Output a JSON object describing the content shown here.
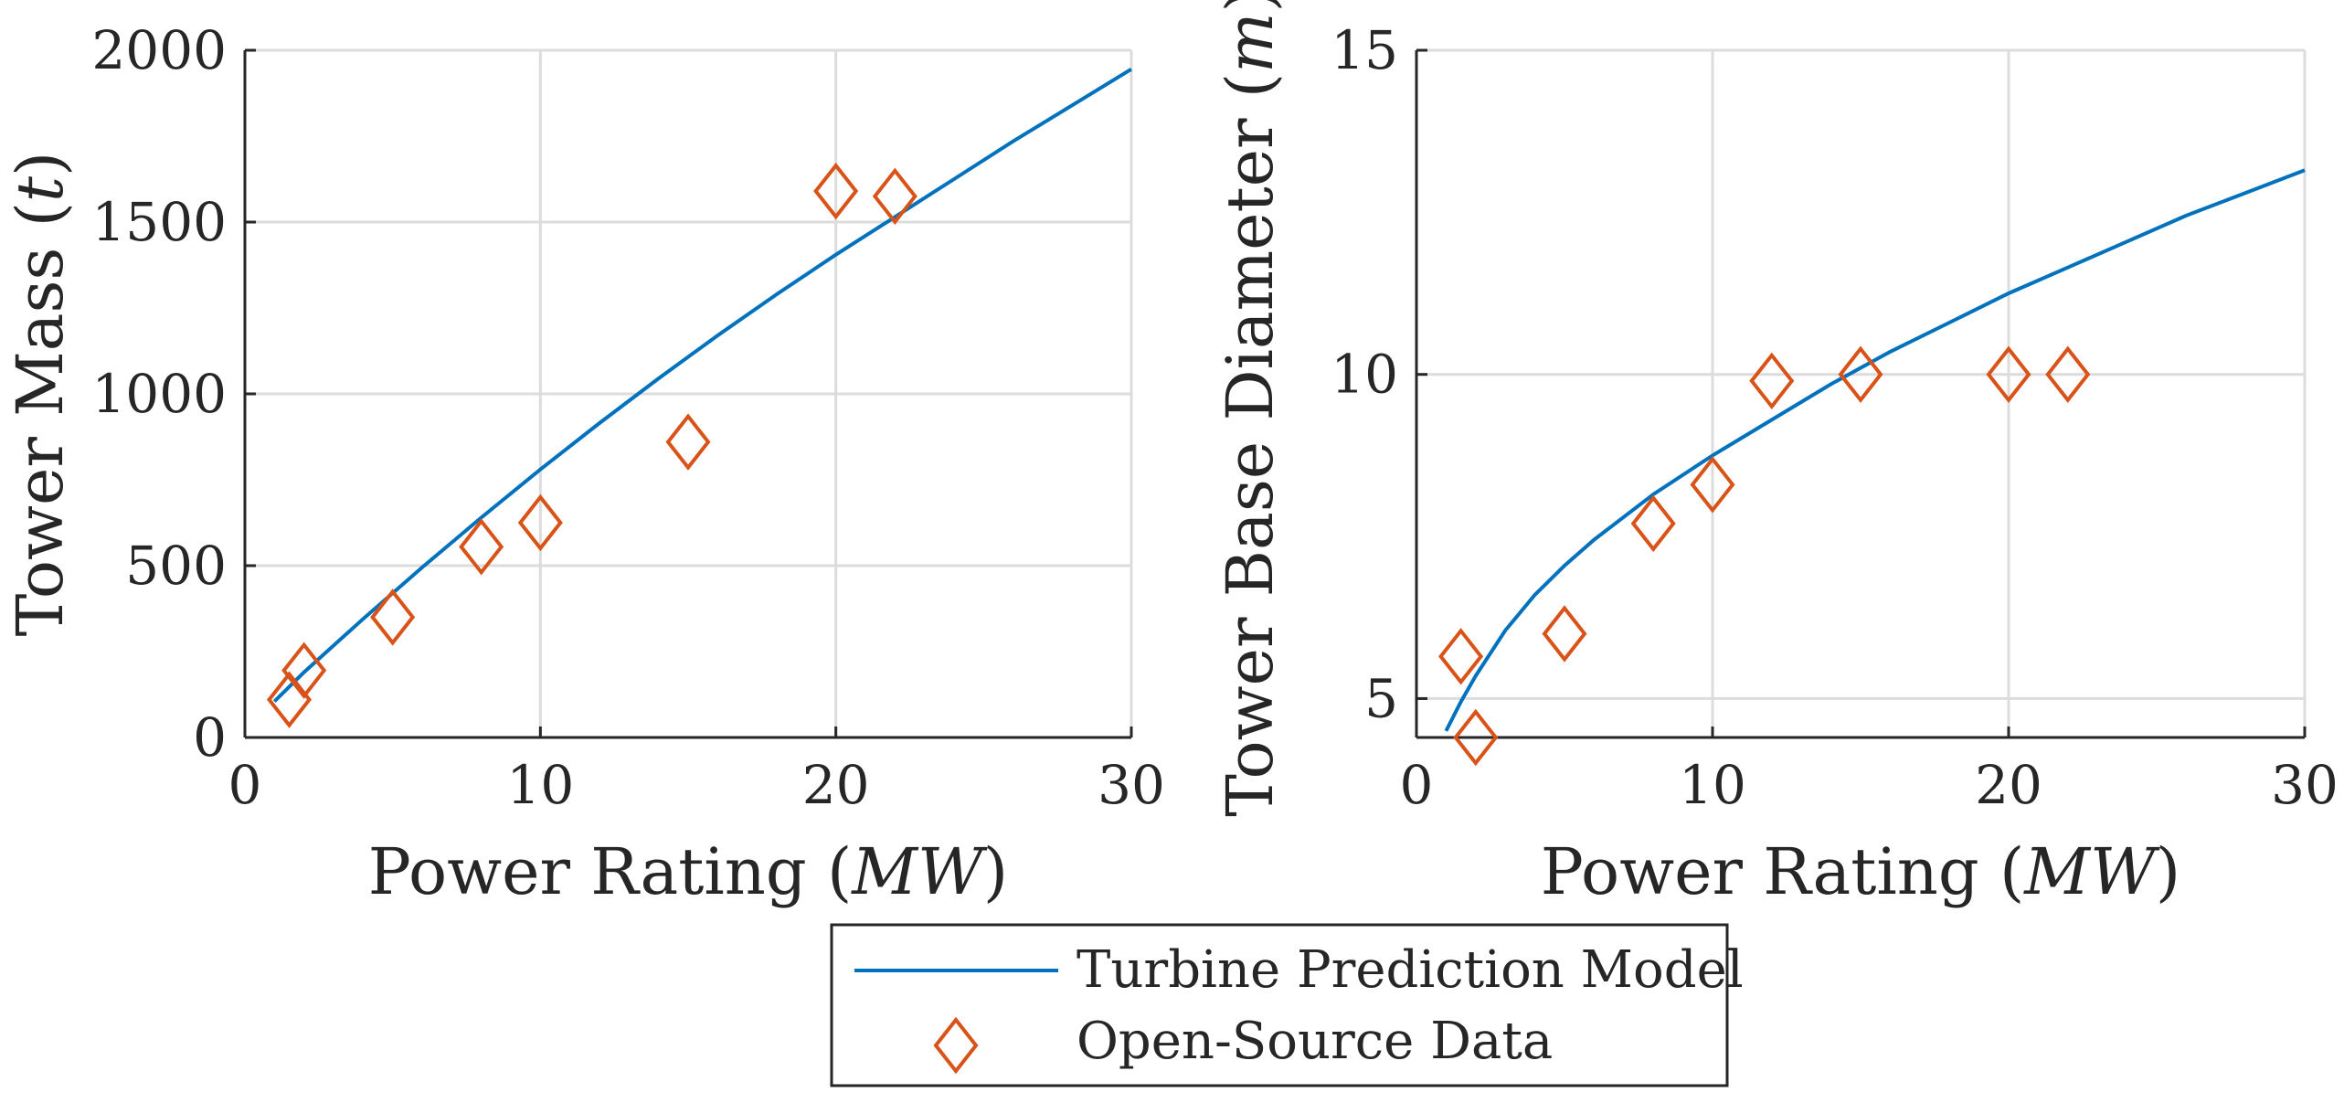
{
  "colors": {
    "model": "#0072bd",
    "data": "#d95319",
    "axis": "#262626",
    "grid": "#dcdcdc"
  },
  "legend": {
    "model_label": "Turbine Prediction Model",
    "data_label": "Open-Source Data"
  },
  "chart_data": [
    {
      "type": "line+scatter",
      "title": "",
      "xlabel": "Power Rating (MW)",
      "ylabel": "Tower Mass (t)",
      "xlim": [
        0,
        30
      ],
      "ylim": [
        0,
        2000
      ],
      "xticks": [
        0,
        10,
        20,
        30
      ],
      "yticks": [
        0,
        500,
        1000,
        1500,
        2000
      ],
      "grid": true,
      "series": [
        {
          "name": "Turbine Prediction Model",
          "kind": "line",
          "x": [
            1,
            2,
            4,
            6,
            8,
            10,
            12,
            14,
            16,
            18,
            20,
            22,
            24,
            26,
            28,
            30
          ],
          "y": [
            105,
            190,
            345,
            495,
            640,
            780,
            915,
            1045,
            1170,
            1290,
            1405,
            1515,
            1625,
            1735,
            1840,
            1945
          ]
        },
        {
          "name": "Open-Source Data",
          "kind": "scatter",
          "x": [
            1.5,
            2,
            5,
            8,
            10,
            15,
            20,
            22
          ],
          "y": [
            110,
            195,
            350,
            555,
            625,
            860,
            1590,
            1575
          ]
        }
      ]
    },
    {
      "type": "line+scatter",
      "title": "",
      "xlabel": "Power Rating (MW)",
      "ylabel": "Tower Base Diameter (m)",
      "xlim": [
        0,
        30
      ],
      "ylim": [
        4.4,
        15
      ],
      "xticks": [
        0,
        10,
        20,
        30
      ],
      "yticks": [
        5,
        10,
        15
      ],
      "grid": true,
      "series": [
        {
          "name": "Turbine Prediction Model",
          "kind": "line",
          "x": [
            1,
            1.5,
            2,
            3,
            4,
            5,
            6,
            8,
            10,
            12,
            14,
            16,
            18,
            20,
            22,
            24,
            26,
            28,
            30
          ],
          "y": [
            4.5,
            4.95,
            5.35,
            6.05,
            6.6,
            7.05,
            7.45,
            8.15,
            8.75,
            9.3,
            9.85,
            10.35,
            10.8,
            11.25,
            11.65,
            12.05,
            12.45,
            12.8,
            13.15
          ]
        },
        {
          "name": "Open-Source Data",
          "kind": "scatter",
          "x": [
            1.5,
            2,
            5,
            8,
            10,
            12,
            15,
            20,
            22
          ],
          "y": [
            5.65,
            4.4,
            6.0,
            7.7,
            8.3,
            9.9,
            10.0,
            10.0,
            10.0
          ]
        }
      ]
    }
  ]
}
